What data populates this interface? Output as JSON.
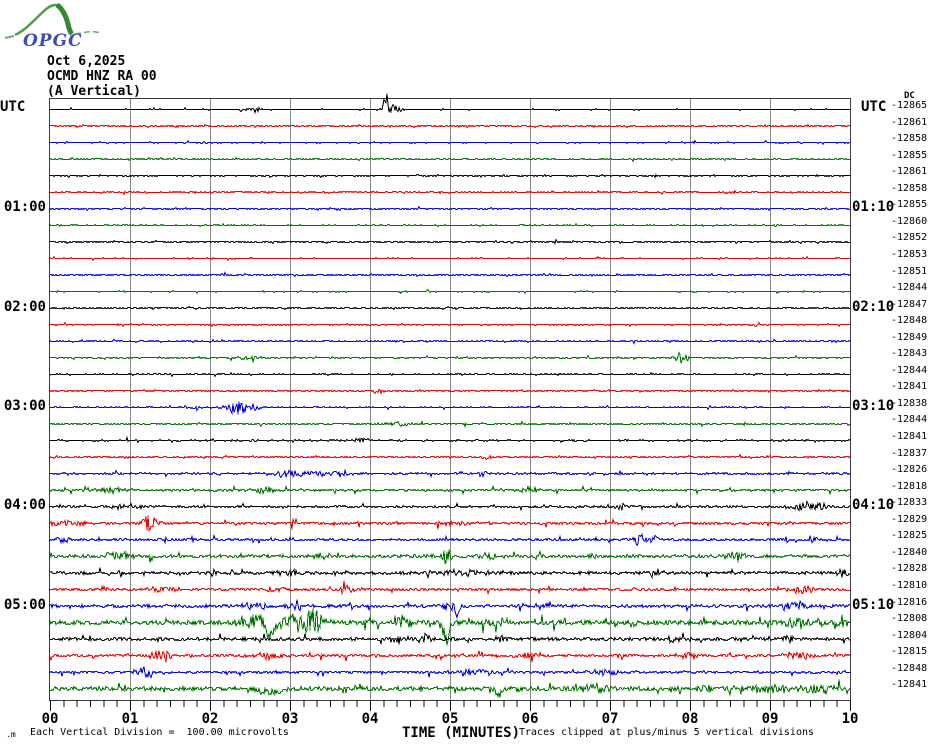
{
  "header": {
    "logo_text": "OPGC",
    "date": "Oct 6,2025",
    "station": "OCMD HNZ RA 00",
    "component": "(A Vertical)"
  },
  "footer": {
    "left_mark": ".m",
    "scale_note": "Each Vertical Division =  100.00 microvolts",
    "clip_note": "Traces clipped at plus/minus 5 vertical divisions"
  },
  "chart_data": {
    "type": "line",
    "variant": "helicorder-webicorder-drum-record",
    "x_title": "TIME (MINUTES)",
    "x_tick_labels": [
      "00",
      "01",
      "02",
      "03",
      "04",
      "05",
      "06",
      "07",
      "08",
      "09",
      "10"
    ],
    "x_range": [
      0,
      10
    ],
    "minutes_per_line": 10,
    "minor_ticks_per_minute": 6,
    "grid": "vertical lines at each minute",
    "legend_position": "none",
    "utc_left": "UTC",
    "utc_right": "UTC",
    "dc_header": "DC",
    "colors": {
      "black": "#000000",
      "red": "#ee0000",
      "blue": "#0000ee",
      "green": "#007400"
    },
    "color_cycle": [
      "black",
      "red",
      "blue",
      "green"
    ],
    "left_hour_labels": [
      {
        "label": "01:00",
        "trace": 6
      },
      {
        "label": "02:00",
        "trace": 12
      },
      {
        "label": "03:00",
        "trace": 18
      },
      {
        "label": "04:00",
        "trace": 24
      },
      {
        "label": "05:00",
        "trace": 30
      }
    ],
    "right_hour_labels": [
      {
        "label": "01:10",
        "trace": 6
      },
      {
        "label": "02:10",
        "trace": 12
      },
      {
        "label": "03:10",
        "trace": 18
      },
      {
        "label": "04:10",
        "trace": 24
      },
      {
        "label": "05:10",
        "trace": 30
      }
    ],
    "traces": [
      {
        "start": "00:00",
        "color": "black",
        "dc": -12865,
        "amp": 0.5,
        "events": [
          [
            2.4,
            0.05,
            2,
            0
          ],
          [
            2.55,
            0.08,
            3,
            0
          ],
          [
            4.2,
            0.04,
            18,
            1
          ],
          [
            4.28,
            0.12,
            5,
            0
          ]
        ]
      },
      {
        "start": "00:10",
        "color": "red",
        "dc": -12861,
        "amp": 0.5,
        "events": []
      },
      {
        "start": "00:20",
        "color": "blue",
        "dc": -12858,
        "amp": 0.5,
        "events": []
      },
      {
        "start": "00:30",
        "color": "green",
        "dc": -12855,
        "amp": 0.5,
        "events": []
      },
      {
        "start": "00:40",
        "color": "black",
        "dc": -12861,
        "amp": 0.5,
        "events": []
      },
      {
        "start": "00:50",
        "color": "red",
        "dc": -12858,
        "amp": 0.5,
        "events": []
      },
      {
        "start": "01:00",
        "color": "blue",
        "dc": -12855,
        "amp": 0.5,
        "events": []
      },
      {
        "start": "01:10",
        "color": "green",
        "dc": -12860,
        "amp": 0.5,
        "events": []
      },
      {
        "start": "01:20",
        "color": "black",
        "dc": -12852,
        "amp": 0.5,
        "events": []
      },
      {
        "start": "01:30",
        "color": "red",
        "dc": -12853,
        "amp": 0.5,
        "events": []
      },
      {
        "start": "01:40",
        "color": "blue",
        "dc": -12851,
        "amp": 0.5,
        "events": []
      },
      {
        "start": "01:50",
        "color": "green",
        "dc": -12844,
        "amp": 0.5,
        "events": []
      },
      {
        "start": "02:00",
        "color": "black",
        "dc": -12847,
        "amp": 0.5,
        "events": []
      },
      {
        "start": "02:10",
        "color": "red",
        "dc": -12848,
        "amp": 0.5,
        "events": []
      },
      {
        "start": "02:20",
        "color": "blue",
        "dc": -12849,
        "amp": 0.5,
        "events": []
      },
      {
        "start": "02:30",
        "color": "green",
        "dc": -12843,
        "amp": 0.6,
        "events": [
          [
            2.45,
            0.15,
            2,
            0
          ],
          [
            7.9,
            0.1,
            6,
            0
          ]
        ]
      },
      {
        "start": "02:40",
        "color": "black",
        "dc": -12844,
        "amp": 0.5,
        "events": []
      },
      {
        "start": "02:50",
        "color": "red",
        "dc": -12841,
        "amp": 0.5,
        "events": [
          [
            4.1,
            0.08,
            3,
            0
          ]
        ]
      },
      {
        "start": "03:00",
        "color": "blue",
        "dc": -12838,
        "amp": 0.6,
        "events": [
          [
            1.8,
            0.25,
            1.5,
            0
          ],
          [
            2.35,
            0.12,
            8,
            0
          ],
          [
            2.55,
            0.08,
            4,
            0
          ]
        ]
      },
      {
        "start": "03:10",
        "color": "green",
        "dc": -12844,
        "amp": 0.8,
        "events": [
          [
            4.35,
            0.25,
            2,
            0
          ]
        ]
      },
      {
        "start": "03:20",
        "color": "black",
        "dc": -12841,
        "amp": 0.6,
        "events": [
          [
            3.9,
            0.1,
            3,
            0
          ],
          [
            6.55,
            0.08,
            2,
            0
          ]
        ]
      },
      {
        "start": "03:30",
        "color": "red",
        "dc": -12837,
        "amp": 0.6,
        "events": [
          [
            5.45,
            0.06,
            3,
            0
          ]
        ]
      },
      {
        "start": "03:40",
        "color": "blue",
        "dc": -12826,
        "amp": 0.8,
        "events": [
          [
            2.95,
            0.15,
            4,
            0
          ],
          [
            3.3,
            0.3,
            3,
            0
          ],
          [
            3.65,
            0.1,
            3,
            0
          ],
          [
            5.4,
            0.08,
            3,
            0
          ]
        ]
      },
      {
        "start": "03:50",
        "color": "green",
        "dc": -12818,
        "amp": 1.0,
        "events": [
          [
            0.75,
            0.15,
            4,
            0
          ],
          [
            2.7,
            0.18,
            4,
            0
          ],
          [
            6.0,
            0.12,
            4,
            0
          ]
        ]
      },
      {
        "start": "04:00",
        "color": "black",
        "dc": -12833,
        "amp": 0.9,
        "events": [
          [
            1.0,
            0.3,
            2,
            0
          ],
          [
            7.15,
            0.1,
            3,
            0
          ],
          [
            9.5,
            0.25,
            5,
            0
          ]
        ]
      },
      {
        "start": "04:10",
        "color": "red",
        "dc": -12829,
        "amp": 1.2,
        "events": [
          [
            0.2,
            0.3,
            3,
            0
          ],
          [
            1.25,
            0.12,
            9,
            0
          ],
          [
            3.05,
            0.04,
            5,
            0
          ],
          [
            5.0,
            0.3,
            2,
            0
          ]
        ]
      },
      {
        "start": "04:20",
        "color": "blue",
        "dc": -12825,
        "amp": 1.1,
        "events": [
          [
            0.15,
            0.1,
            4,
            0
          ],
          [
            7.35,
            0.1,
            6,
            0
          ],
          [
            7.55,
            0.08,
            4,
            0
          ],
          [
            9.2,
            0.05,
            4,
            0
          ],
          [
            9.55,
            0.05,
            4,
            0
          ]
        ]
      },
      {
        "start": "04:30",
        "color": "green",
        "dc": -12840,
        "amp": 1.6,
        "events": [
          [
            0.85,
            0.2,
            5,
            0
          ],
          [
            3.4,
            0.15,
            3,
            0
          ],
          [
            4.95,
            0.06,
            8,
            0
          ],
          [
            5.5,
            0.15,
            3,
            0
          ],
          [
            6.8,
            0.1,
            3,
            0
          ],
          [
            8.55,
            0.15,
            4,
            0
          ]
        ]
      },
      {
        "start": "04:40",
        "color": "black",
        "dc": -12828,
        "amp": 1.4,
        "events": [
          [
            3.0,
            0.2,
            3,
            0
          ],
          [
            5.2,
            0.4,
            3,
            0
          ],
          [
            7.6,
            0.15,
            3,
            0
          ],
          [
            9.9,
            0.1,
            5,
            0
          ]
        ]
      },
      {
        "start": "04:50",
        "color": "red",
        "dc": -12810,
        "amp": 1.2,
        "events": [
          [
            1.4,
            0.2,
            3,
            0
          ],
          [
            2.8,
            0.2,
            3,
            0
          ],
          [
            3.7,
            0.06,
            9,
            0
          ],
          [
            9.4,
            0.15,
            5,
            0
          ]
        ]
      },
      {
        "start": "05:00",
        "color": "blue",
        "dc": -12816,
        "amp": 1.4,
        "events": [
          [
            2.6,
            0.25,
            3,
            0
          ],
          [
            3.05,
            0.1,
            4,
            0
          ],
          [
            5.0,
            0.2,
            4,
            0
          ],
          [
            5.1,
            0.05,
            11,
            -1
          ],
          [
            6.2,
            0.3,
            2,
            0
          ],
          [
            9.3,
            0.15,
            5,
            0
          ]
        ]
      },
      {
        "start": "05:10",
        "color": "green",
        "dc": -12808,
        "amp": 2.2,
        "events": [
          [
            2.55,
            0.2,
            8,
            0
          ],
          [
            2.75,
            0.05,
            24,
            -1
          ],
          [
            3.05,
            0.3,
            10,
            0
          ],
          [
            3.3,
            0.1,
            14,
            0
          ],
          [
            4.4,
            0.12,
            9,
            0
          ],
          [
            4.95,
            0.05,
            24,
            -1
          ],
          [
            5.55,
            0.15,
            5,
            0
          ],
          [
            7.3,
            0.1,
            3,
            0
          ],
          [
            9.35,
            0.25,
            5,
            0
          ],
          [
            9.9,
            0.08,
            6,
            0
          ]
        ]
      },
      {
        "start": "05:20",
        "color": "black",
        "dc": -12804,
        "amp": 1.5,
        "events": [
          [
            4.35,
            0.1,
            5,
            0
          ],
          [
            4.7,
            0.1,
            5,
            0
          ],
          [
            5.65,
            0.2,
            3,
            0
          ],
          [
            7.8,
            0.1,
            3,
            0
          ],
          [
            9.2,
            0.1,
            4,
            0
          ]
        ]
      },
      {
        "start": "05:30",
        "color": "red",
        "dc": -12815,
        "amp": 1.4,
        "events": [
          [
            1.4,
            0.15,
            5,
            0
          ],
          [
            2.7,
            0.15,
            4,
            0
          ],
          [
            6.0,
            0.2,
            3,
            0
          ],
          [
            8.0,
            0.15,
            3,
            0
          ],
          [
            9.35,
            0.2,
            4,
            0
          ]
        ]
      },
      {
        "start": "05:40",
        "color": "blue",
        "dc": -12848,
        "amp": 1.2,
        "events": [
          [
            1.2,
            0.1,
            7,
            0
          ],
          [
            5.3,
            0.2,
            3,
            0
          ],
          [
            7.0,
            0.25,
            3,
            0
          ]
        ]
      },
      {
        "start": "05:50",
        "color": "green",
        "dc": -12841,
        "amp": 2.0,
        "events": [
          [
            2.75,
            0.15,
            8,
            -1
          ],
          [
            5.6,
            0.04,
            12,
            -1
          ],
          [
            6.85,
            0.2,
            5,
            0
          ],
          [
            8.3,
            0.3,
            4,
            0
          ],
          [
            9.0,
            0.3,
            4,
            0
          ],
          [
            9.6,
            0.2,
            5,
            0
          ]
        ]
      }
    ]
  }
}
